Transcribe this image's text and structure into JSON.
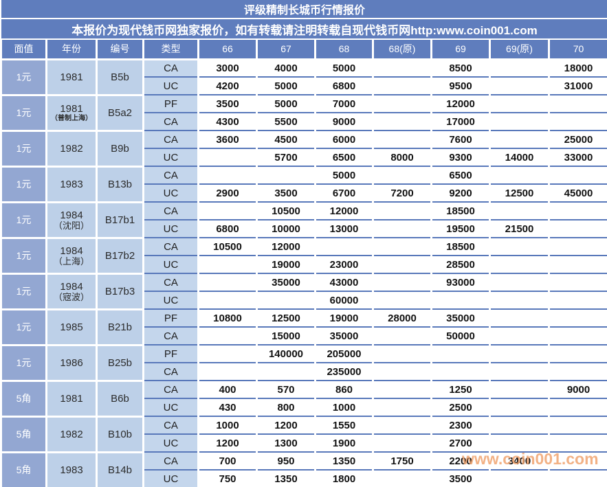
{
  "title": "评级精制长城币行情报价",
  "subtitle": "本报价为现代钱币网独家报价，如有转载请注明转载自现代钱币网http:www.coin001.com",
  "watermark": "www.coin001.com",
  "colors": {
    "header_blue": "#5f7dbd",
    "denom_blue": "#93a7d2",
    "label_blue": "#bdd0e8",
    "type_blue": "#c4d6ec",
    "grid_blue": "#5878ba",
    "watermark_orange": "#f0a470"
  },
  "columns": [
    "面值",
    "年份",
    "编号",
    "类型",
    "66",
    "67",
    "68",
    "68(原)",
    "69",
    "69(原)",
    "70"
  ],
  "groups": [
    {
      "denom": "1元",
      "year": "1981",
      "year_note": "",
      "code": "B5b",
      "rows": [
        {
          "type": "CA",
          "values": [
            "3000",
            "4000",
            "5000",
            "",
            "8500",
            "",
            "18000"
          ]
        },
        {
          "type": "UC",
          "values": [
            "4200",
            "5000",
            "6800",
            "",
            "9500",
            "",
            "31000"
          ]
        }
      ]
    },
    {
      "denom": "1元",
      "year": "1981",
      "year_note": "（普制上海）",
      "code": "B5a2",
      "rows": [
        {
          "type": "PF",
          "values": [
            "3500",
            "5000",
            "7000",
            "",
            "12000",
            "",
            ""
          ]
        },
        {
          "type": "CA",
          "values": [
            "4300",
            "5500",
            "9000",
            "",
            "17000",
            "",
            ""
          ]
        }
      ]
    },
    {
      "denom": "1元",
      "year": "1982",
      "year_note": "",
      "code": "B9b",
      "rows": [
        {
          "type": "CA",
          "values": [
            "3600",
            "4500",
            "6000",
            "",
            "7600",
            "",
            "25000"
          ]
        },
        {
          "type": "UC",
          "values": [
            "",
            "5700",
            "6500",
            "8000",
            "9300",
            "14000",
            "33000"
          ]
        }
      ]
    },
    {
      "denom": "1元",
      "year": "1983",
      "year_note": "",
      "code": "B13b",
      "rows": [
        {
          "type": "CA",
          "values": [
            "",
            "",
            "5000",
            "",
            "6500",
            "",
            ""
          ]
        },
        {
          "type": "UC",
          "values": [
            "2900",
            "3500",
            "6700",
            "7200",
            "9200",
            "12500",
            "45000"
          ]
        }
      ]
    },
    {
      "denom": "1元",
      "year": "1984",
      "year_note": "（沈阳）",
      "code": "B17b1",
      "rows": [
        {
          "type": "CA",
          "values": [
            "",
            "10500",
            "12000",
            "",
            "18500",
            "",
            ""
          ]
        },
        {
          "type": "UC",
          "values": [
            "6800",
            "10000",
            "13000",
            "",
            "19500",
            "21500",
            ""
          ]
        }
      ]
    },
    {
      "denom": "1元",
      "year": "1984",
      "year_note": "（上海）",
      "code": "B17b2",
      "rows": [
        {
          "type": "CA",
          "values": [
            "10500",
            "12000",
            "",
            "",
            "18500",
            "",
            ""
          ]
        },
        {
          "type": "UC",
          "values": [
            "",
            "19000",
            "23000",
            "",
            "28500",
            "",
            ""
          ]
        }
      ]
    },
    {
      "denom": "1元",
      "year": "1984",
      "year_note": "（宼波）",
      "code": "B17b3",
      "rows": [
        {
          "type": "CA",
          "values": [
            "",
            "35000",
            "43000",
            "",
            "93000",
            "",
            ""
          ]
        },
        {
          "type": "UC",
          "values": [
            "",
            "",
            "60000",
            "",
            "",
            "",
            ""
          ]
        }
      ]
    },
    {
      "denom": "1元",
      "year": "1985",
      "year_note": "",
      "code": "B21b",
      "rows": [
        {
          "type": "PF",
          "values": [
            "10800",
            "12500",
            "19000",
            "28000",
            "35000",
            "",
            ""
          ]
        },
        {
          "type": "CA",
          "values": [
            "",
            "15000",
            "35000",
            "",
            "50000",
            "",
            ""
          ]
        }
      ]
    },
    {
      "denom": "1元",
      "year": "1986",
      "year_note": "",
      "code": "B25b",
      "rows": [
        {
          "type": "PF",
          "values": [
            "",
            "140000",
            "205000",
            "",
            "",
            "",
            ""
          ]
        },
        {
          "type": "CA",
          "values": [
            "",
            "",
            "235000",
            "",
            "",
            "",
            ""
          ]
        }
      ]
    },
    {
      "denom": "5角",
      "year": "1981",
      "year_note": "",
      "code": "B6b",
      "rows": [
        {
          "type": "CA",
          "values": [
            "400",
            "570",
            "860",
            "",
            "1250",
            "",
            "9000"
          ]
        },
        {
          "type": "UC",
          "values": [
            "430",
            "800",
            "1000",
            "",
            "2500",
            "",
            ""
          ]
        }
      ]
    },
    {
      "denom": "5角",
      "year": "1982",
      "year_note": "",
      "code": "B10b",
      "rows": [
        {
          "type": "CA",
          "values": [
            "1000",
            "1200",
            "1550",
            "",
            "2300",
            "",
            ""
          ]
        },
        {
          "type": "UC",
          "values": [
            "1200",
            "1300",
            "1900",
            "",
            "2700",
            "",
            ""
          ]
        }
      ]
    },
    {
      "denom": "5角",
      "year": "1983",
      "year_note": "",
      "code": "B14b",
      "rows": [
        {
          "type": "CA",
          "values": [
            "700",
            "950",
            "1350",
            "1750",
            "2200",
            "3400",
            ""
          ]
        },
        {
          "type": "UC",
          "values": [
            "750",
            "1350",
            "1800",
            "",
            "3500",
            "",
            ""
          ]
        }
      ]
    }
  ]
}
